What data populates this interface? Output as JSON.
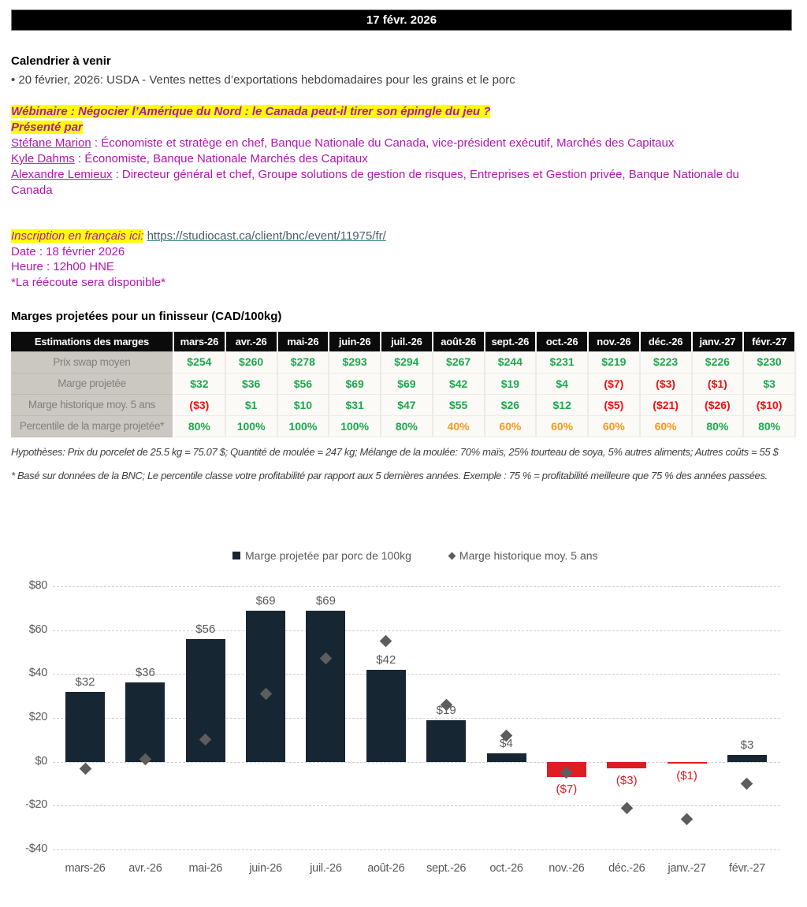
{
  "banner": {
    "date": "17 févr. 2026"
  },
  "calendar": {
    "title": "Calendrier à venir",
    "bullet": "• 20 février, 2026: USDA - Ventes nettes d’exportations hebdomadaires pour les grains et le porc"
  },
  "webinar": {
    "title": "Wébinaire : Négocier l’Amérique du Nord : le Canada peut-il tirer son épingle du jeu ?",
    "presented_by": "Présenté par",
    "speakers": [
      {
        "name": "Stéfane Marion",
        "desc": " : Économiste et stratège en chef, Banque Nationale du Canada, vice-président exécutif, Marchés des Capitaux"
      },
      {
        "name": "Kyle Dahms",
        "desc": " : Économiste, Banque Nationale Marchés des Capitaux"
      },
      {
        "name": "Alexandre Lemieux",
        "desc": " : Directeur général et chef, Groupe solutions de gestion de risques, Entreprises et Gestion privée, Banque Nationale du Canada"
      }
    ],
    "registration_label": "Inscription en français ici:",
    "registration_url": "https://studiocast.ca/client/bnc/event/11975/fr/",
    "date_line": "Date : 18 février 2026",
    "time_line": "Heure : 12h00 HNE",
    "replay_line": "*La réécoute sera disponible*"
  },
  "margins": {
    "title": "Marges projetées pour un finisseur (CAD/100kg)",
    "table": {
      "corner": "Estimations des marges",
      "months": [
        "mars-26",
        "avr.-26",
        "mai-26",
        "juin-26",
        "juil.-26",
        "août-26",
        "sept.-26",
        "oct.-26",
        "nov.-26",
        "déc.-26",
        "janv.-27",
        "févr.-27"
      ],
      "rows": [
        {
          "label": "Prix swap moyen",
          "cells": [
            [
              "$254",
              "green"
            ],
            [
              "$260",
              "green"
            ],
            [
              "$278",
              "green"
            ],
            [
              "$293",
              "green"
            ],
            [
              "$294",
              "green"
            ],
            [
              "$267",
              "green"
            ],
            [
              "$244",
              "green"
            ],
            [
              "$231",
              "green"
            ],
            [
              "$219",
              "green"
            ],
            [
              "$223",
              "green"
            ],
            [
              "$226",
              "green"
            ],
            [
              "$230",
              "green"
            ]
          ]
        },
        {
          "label": "Marge projetée",
          "cells": [
            [
              "$32",
              "green"
            ],
            [
              "$36",
              "green"
            ],
            [
              "$56",
              "green"
            ],
            [
              "$69",
              "green"
            ],
            [
              "$69",
              "green"
            ],
            [
              "$42",
              "green"
            ],
            [
              "$19",
              "green"
            ],
            [
              "$4",
              "green"
            ],
            [
              "($7)",
              "red"
            ],
            [
              "($3)",
              "red"
            ],
            [
              "($1)",
              "red"
            ],
            [
              "$3",
              "green"
            ]
          ]
        },
        {
          "label": "Marge historique moy. 5 ans",
          "cells": [
            [
              "($3)",
              "red"
            ],
            [
              "$1",
              "green"
            ],
            [
              "$10",
              "green"
            ],
            [
              "$31",
              "green"
            ],
            [
              "$47",
              "green"
            ],
            [
              "$55",
              "green"
            ],
            [
              "$26",
              "green"
            ],
            [
              "$12",
              "green"
            ],
            [
              "($5)",
              "red"
            ],
            [
              "($21)",
              "red"
            ],
            [
              "($26)",
              "red"
            ],
            [
              "($10)",
              "red"
            ]
          ]
        },
        {
          "label": "Percentile de la marge projetée*",
          "cells": [
            [
              "80%",
              "green"
            ],
            [
              "100%",
              "green"
            ],
            [
              "100%",
              "green"
            ],
            [
              "100%",
              "green"
            ],
            [
              "80%",
              "green"
            ],
            [
              "40%",
              "orange"
            ],
            [
              "60%",
              "orange"
            ],
            [
              "60%",
              "orange"
            ],
            [
              "60%",
              "orange"
            ],
            [
              "60%",
              "orange"
            ],
            [
              "80%",
              "green"
            ],
            [
              "80%",
              "green"
            ]
          ]
        }
      ]
    },
    "footnotes": [
      "Hypothèses: Prix du porcelet de 25.5 kg = 75.07 $; Quantité de moulée = 247 kg; Mélange de la moulée: 70% maïs, 25% tourteau de soya, 5% autres aliments; Autres coûts = 55 $",
      "* Basé sur données de la BNC; Le percentile classe votre profitabilité par rapport aux 5 dernières années. Exemple : 75 % = profitabilité meilleure que 75 % des années passées."
    ]
  },
  "chart_data": {
    "type": "bar",
    "title": "",
    "categories": [
      "mars-26",
      "avr.-26",
      "mai-26",
      "juin-26",
      "juil.-26",
      "août-26",
      "sept.-26",
      "oct.-26",
      "nov.-26",
      "déc.-26",
      "janv.-27",
      "févr.-27"
    ],
    "series": [
      {
        "name": "Marge projetée par porc de 100kg",
        "type": "bar",
        "values": [
          32,
          36,
          56,
          69,
          69,
          42,
          19,
          4,
          -7,
          -3,
          -1,
          3
        ],
        "labels": [
          "$32",
          "$36",
          "$56",
          "$69",
          "$69",
          "$42",
          "$19",
          "$4",
          "($7)",
          "($3)",
          "($1)",
          "$3"
        ]
      },
      {
        "name": "Marge historique moy. 5 ans",
        "type": "scatter",
        "marker": "diamond",
        "values": [
          -3,
          1,
          10,
          31,
          47,
          55,
          26,
          12,
          -5,
          -21,
          -26,
          -10
        ]
      }
    ],
    "ylim": [
      -40,
      80
    ],
    "yticks": [
      {
        "v": 80,
        "label": "$80"
      },
      {
        "v": 60,
        "label": "$60"
      },
      {
        "v": 40,
        "label": "$40"
      },
      {
        "v": 20,
        "label": "$20"
      },
      {
        "v": 0,
        "label": "$0"
      },
      {
        "v": -20,
        "label": "-$20"
      },
      {
        "v": -40,
        "label": "-$40"
      }
    ],
    "grid": "horizontal-dashed",
    "legend_position": "top",
    "colors": {
      "bar_positive": "#172633",
      "bar_negative": "#df1b24",
      "marker": "#5d5d5d",
      "value_label": "#595959",
      "value_label_negative": "#df1b24"
    }
  },
  "colors": {
    "magenta_text": "#b117b1",
    "highlight": "#ffff00",
    "table_green": "#1ca94d",
    "table_red": "#ee1111",
    "table_orange": "#f6991c",
    "link_text": "#47606b"
  }
}
